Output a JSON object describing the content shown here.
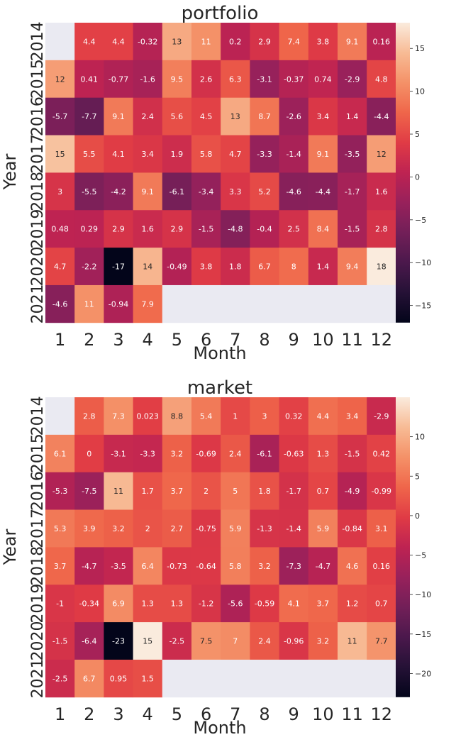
{
  "chart_data": [
    {
      "type": "heatmap",
      "title": "portfolio",
      "xlabel": "Month",
      "ylabel": "Year",
      "x_categories": [
        "1",
        "2",
        "3",
        "4",
        "5",
        "6",
        "7",
        "8",
        "9",
        "10",
        "11",
        "12"
      ],
      "y_categories": [
        "2014",
        "2015",
        "2016",
        "2017",
        "2018",
        "2019",
        "2020",
        "2021"
      ],
      "values": [
        [
          null,
          4.4,
          4.4,
          -0.32,
          13,
          11,
          0.2,
          2.9,
          7.4,
          3.8,
          9.1,
          0.16
        ],
        [
          12,
          0.41,
          -0.77,
          -1.6,
          9.5,
          2.6,
          6.3,
          -3.1,
          -0.37,
          0.74,
          -2.9,
          4.8
        ],
        [
          -5.7,
          -7.7,
          9.1,
          2.4,
          5.6,
          4.5,
          13,
          8.7,
          -2.6,
          3.4,
          1.4,
          -4.4
        ],
        [
          15,
          5.5,
          4.1,
          3.4,
          1.9,
          5.8,
          4.7,
          -3.3,
          -1.4,
          9.1,
          -3.5,
          12
        ],
        [
          3,
          -5.5,
          -4.2,
          9.1,
          -6.1,
          -3.4,
          3.3,
          5.2,
          -4.6,
          -4.4,
          -1.7,
          1.6
        ],
        [
          0.48,
          0.29,
          2.9,
          1.6,
          2.9,
          -1.5,
          -4.8,
          -0.4,
          2.5,
          8.4,
          -1.5,
          2.8
        ],
        [
          4.7,
          -2.2,
          -17,
          14,
          -0.49,
          3.8,
          1.8,
          6.7,
          8,
          1.4,
          9.4,
          18
        ],
        [
          -4.6,
          11,
          -0.94,
          7.9,
          null,
          null,
          null,
          null,
          null,
          null,
          null,
          null
        ]
      ],
      "labels": [
        [
          "",
          "4.4",
          "4.4",
          "-0.32",
          "13",
          "11",
          "0.2",
          "2.9",
          "7.4",
          "3.8",
          "9.1",
          "0.16"
        ],
        [
          "12",
          "0.41",
          "-0.77",
          "-1.6",
          "9.5",
          "2.6",
          "6.3",
          "-3.1",
          "-0.37",
          "0.74",
          "-2.9",
          "4.8"
        ],
        [
          "-5.7",
          "-7.7",
          "9.1",
          "2.4",
          "5.6",
          "4.5",
          "13",
          "8.7",
          "-2.6",
          "3.4",
          "1.4",
          "-4.4"
        ],
        [
          "15",
          "5.5",
          "4.1",
          "3.4",
          "1.9",
          "5.8",
          "4.7",
          "-3.3",
          "-1.4",
          "9.1",
          "-3.5",
          "12"
        ],
        [
          "3",
          "-5.5",
          "-4.2",
          "9.1",
          "-6.1",
          "-3.4",
          "3.3",
          "5.2",
          "-4.6",
          "-4.4",
          "-1.7",
          "1.6"
        ],
        [
          "0.48",
          "0.29",
          "2.9",
          "1.6",
          "2.9",
          "-1.5",
          "-4.8",
          "-0.4",
          "2.5",
          "8.4",
          "-1.5",
          "2.8"
        ],
        [
          "4.7",
          "-2.2",
          "-17",
          "14",
          "-0.49",
          "3.8",
          "1.8",
          "6.7",
          "8",
          "1.4",
          "9.4",
          "18"
        ],
        [
          "-4.6",
          "11",
          "-0.94",
          "7.9",
          "",
          "",
          "",
          "",
          "",
          "",
          "",
          ""
        ]
      ],
      "colorbar": {
        "min": -17,
        "max": 18,
        "ticks": [
          -15,
          -10,
          -5,
          0,
          5,
          10,
          15
        ],
        "tick_labels": [
          "−15",
          "−10",
          "−5",
          "0",
          "5",
          "10",
          "15"
        ]
      },
      "missing_color": "#eaeaf2",
      "colormap": "rocket"
    },
    {
      "type": "heatmap",
      "title": "market",
      "xlabel": "Month",
      "ylabel": "Year",
      "x_categories": [
        "1",
        "2",
        "3",
        "4",
        "5",
        "6",
        "7",
        "8",
        "9",
        "10",
        "11",
        "12"
      ],
      "y_categories": [
        "2014",
        "2015",
        "2016",
        "2017",
        "2018",
        "2019",
        "2020",
        "2021"
      ],
      "values": [
        [
          null,
          2.8,
          7.3,
          0.023,
          8.8,
          5.4,
          1,
          3,
          0.32,
          4.4,
          3.4,
          -2.9
        ],
        [
          6.1,
          0,
          -3.1,
          -3.3,
          3.2,
          -0.69,
          2.4,
          -6.1,
          -0.63,
          1.3,
          -1.5,
          0.42
        ],
        [
          -5.3,
          -7.5,
          11,
          1.7,
          3.7,
          2,
          5,
          1.8,
          -1.7,
          0.7,
          -4.9,
          -0.99
        ],
        [
          5.3,
          3.9,
          3.2,
          2,
          2.7,
          -0.75,
          5.9,
          -1.3,
          -1.4,
          5.9,
          -0.84,
          3.1
        ],
        [
          3.7,
          -4.7,
          -3.5,
          6.4,
          -0.73,
          -0.64,
          5.8,
          3.2,
          -7.3,
          -4.7,
          4.6,
          0.16
        ],
        [
          -1,
          -0.34,
          6.9,
          1.3,
          1.3,
          -1.2,
          -5.6,
          -0.59,
          4.1,
          3.7,
          1.2,
          0.7
        ],
        [
          -1.5,
          -6.4,
          -23,
          15,
          -2.5,
          7.5,
          7,
          2.4,
          -0.96,
          3.2,
          11,
          7.7
        ],
        [
          -2.5,
          6.7,
          0.95,
          1.5,
          null,
          null,
          null,
          null,
          null,
          null,
          null,
          null
        ]
      ],
      "labels": [
        [
          "",
          "2.8",
          "7.3",
          "0.023",
          "8.8",
          "5.4",
          "1",
          "3",
          "0.32",
          "4.4",
          "3.4",
          "-2.9"
        ],
        [
          "6.1",
          "0",
          "-3.1",
          "-3.3",
          "3.2",
          "-0.69",
          "2.4",
          "-6.1",
          "-0.63",
          "1.3",
          "-1.5",
          "0.42"
        ],
        [
          "-5.3",
          "-7.5",
          "11",
          "1.7",
          "3.7",
          "2",
          "5",
          "1.8",
          "-1.7",
          "0.7",
          "-4.9",
          "-0.99"
        ],
        [
          "5.3",
          "3.9",
          "3.2",
          "2",
          "2.7",
          "-0.75",
          "5.9",
          "-1.3",
          "-1.4",
          "5.9",
          "-0.84",
          "3.1"
        ],
        [
          "3.7",
          "-4.7",
          "-3.5",
          "6.4",
          "-0.73",
          "-0.64",
          "5.8",
          "3.2",
          "-7.3",
          "-4.7",
          "4.6",
          "0.16"
        ],
        [
          "-1",
          "-0.34",
          "6.9",
          "1.3",
          "1.3",
          "-1.2",
          "-5.6",
          "-0.59",
          "4.1",
          "3.7",
          "1.2",
          "0.7"
        ],
        [
          "-1.5",
          "-6.4",
          "-23",
          "15",
          "-2.5",
          "7.5",
          "7",
          "2.4",
          "-0.96",
          "3.2",
          "11",
          "7.7"
        ],
        [
          "-2.5",
          "6.7",
          "0.95",
          "1.5",
          "",
          "",
          "",
          "",
          "",
          "",
          "",
          ""
        ]
      ],
      "colorbar": {
        "min": -23,
        "max": 15,
        "ticks": [
          -20,
          -15,
          -10,
          -5,
          0,
          5,
          10
        ],
        "tick_labels": [
          "−20",
          "−15",
          "−10",
          "−5",
          "0",
          "5",
          "10"
        ]
      },
      "missing_color": "#eaeaf2",
      "colormap": "rocket"
    }
  ]
}
